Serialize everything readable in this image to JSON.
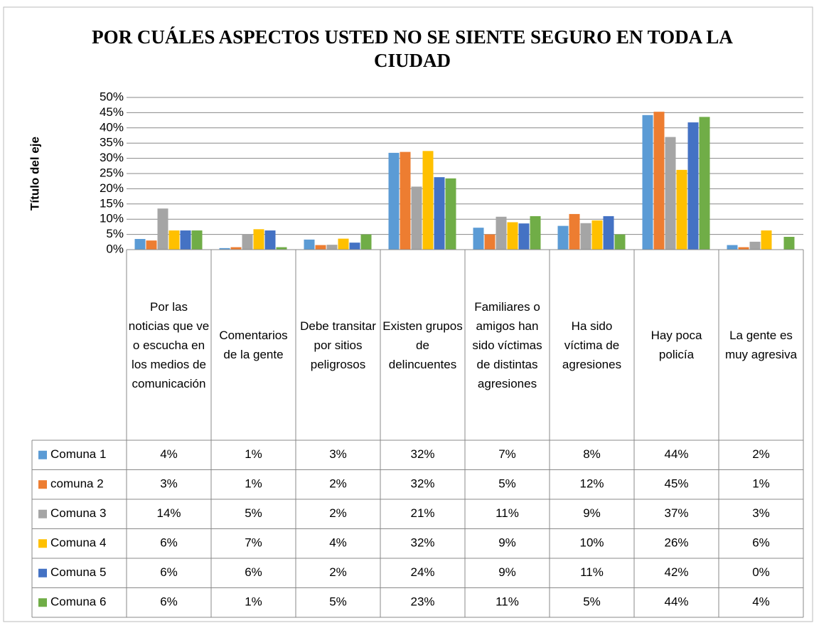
{
  "chart_data": {
    "type": "bar",
    "title": "POR CUÁLES ASPECTOS USTED NO SE SIENTE SEGURO EN TODA LA CIUDAD",
    "y_label": "Título del eje",
    "categories": [
      "Por las noticias que ve o escucha en los medios de comunicación",
      "Comentarios de la gente",
      "Debe transitar por sitios peligrosos",
      "Existen grupos de delincuentes",
      "Familiares o amigos han sido víctimas de distintas agresiones",
      "Ha sido víctima de agresiones",
      "Hay poca policía",
      "La gente es muy agresiva"
    ],
    "ylim": [
      0,
      50
    ],
    "yticks": [
      {
        "value": 0,
        "label": "0%"
      },
      {
        "value": 5,
        "label": "5%"
      },
      {
        "value": 10,
        "label": "10%"
      },
      {
        "value": 15,
        "label": "15%"
      },
      {
        "value": 20,
        "label": "20%"
      },
      {
        "value": 25,
        "label": "25%"
      },
      {
        "value": 30,
        "label": "30%"
      },
      {
        "value": 35,
        "label": "35%"
      },
      {
        "value": 40,
        "label": "40%"
      },
      {
        "value": 45,
        "label": "45%"
      },
      {
        "value": 50,
        "label": "50%"
      }
    ],
    "grid": true,
    "series": [
      {
        "name": "Comuna 1",
        "color": "#5b9bd5",
        "values": [
          3.5,
          0.5,
          3.3,
          31.8,
          7.2,
          7.8,
          44.2,
          1.5
        ],
        "value_labels": [
          "4%",
          "1%",
          "3%",
          "32%",
          "7%",
          "8%",
          "44%",
          "2%"
        ]
      },
      {
        "name": "comuna 2",
        "color": "#ed7d31",
        "values": [
          3.0,
          0.8,
          1.5,
          32.1,
          5.0,
          11.7,
          45.3,
          0.8
        ],
        "value_labels": [
          "3%",
          "1%",
          "2%",
          "32%",
          "5%",
          "12%",
          "45%",
          "1%"
        ]
      },
      {
        "name": "Comuna 3",
        "color": "#a5a5a5",
        "values": [
          13.5,
          5.0,
          1.6,
          20.7,
          10.8,
          8.7,
          37.0,
          2.6
        ],
        "value_labels": [
          "14%",
          "5%",
          "2%",
          "21%",
          "11%",
          "9%",
          "37%",
          "3%"
        ]
      },
      {
        "name": "Comuna 4",
        "color": "#ffc000",
        "values": [
          6.3,
          6.7,
          3.6,
          32.4,
          9.0,
          9.6,
          26.2,
          6.3
        ],
        "value_labels": [
          "6%",
          "7%",
          "4%",
          "32%",
          "9%",
          "10%",
          "26%",
          "6%"
        ]
      },
      {
        "name": "Comuna 5",
        "color": "#4472c4",
        "values": [
          6.3,
          6.3,
          2.3,
          23.8,
          8.6,
          11.0,
          41.8,
          0
        ],
        "value_labels": [
          "6%",
          "6%",
          "2%",
          "24%",
          "9%",
          "11%",
          "42%",
          "0%"
        ]
      },
      {
        "name": "Comuna 6",
        "color": "#70ad47",
        "values": [
          6.3,
          0.8,
          5.0,
          23.4,
          11.0,
          5.0,
          43.6,
          4.2
        ],
        "value_labels": [
          "6%",
          "1%",
          "5%",
          "23%",
          "11%",
          "5%",
          "44%",
          "4%"
        ]
      }
    ]
  }
}
